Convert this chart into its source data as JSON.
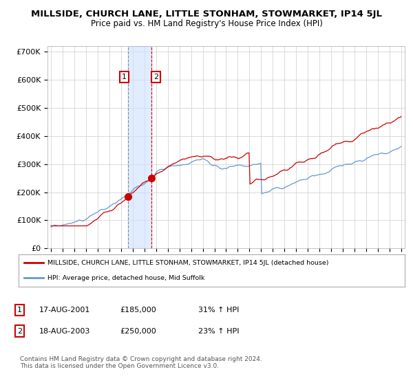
{
  "title": "MILLSIDE, CHURCH LANE, LITTLE STONHAM, STOWMARKET, IP14 5JL",
  "subtitle": "Price paid vs. HM Land Registry's House Price Index (HPI)",
  "red_label": "MILLSIDE, CHURCH LANE, LITTLE STONHAM, STOWMARKET, IP14 5JL (detached house)",
  "blue_label": "HPI: Average price, detached house, Mid Suffolk",
  "sale1_date": "17-AUG-2001",
  "sale1_price": 185000,
  "sale1_hpi": "31% ↑ HPI",
  "sale2_date": "18-AUG-2003",
  "sale2_price": 250000,
  "sale2_hpi": "23% ↑ HPI",
  "footer": "Contains HM Land Registry data © Crown copyright and database right 2024.\nThis data is licensed under the Open Government Licence v3.0.",
  "ylim": [
    0,
    720000
  ],
  "yticks": [
    0,
    100000,
    200000,
    300000,
    400000,
    500000,
    600000,
    700000
  ],
  "ytick_labels": [
    "£0",
    "£100K",
    "£200K",
    "£300K",
    "£400K",
    "£500K",
    "£600K",
    "£700K"
  ],
  "red_color": "#cc0000",
  "blue_color": "#6699cc",
  "marker_color": "#cc0000",
  "vline1_x": 2001.625,
  "vline2_x": 2003.625,
  "marker1_x": 2001.625,
  "marker1_y": 185000,
  "marker2_x": 2003.625,
  "marker2_y": 250000,
  "bg_color": "#ffffff",
  "grid_color": "#cccccc",
  "shade_color": "#cce0ff",
  "xlim_left": 1994.7,
  "xlim_right": 2025.3,
  "xstart": 1995,
  "xend": 2025
}
